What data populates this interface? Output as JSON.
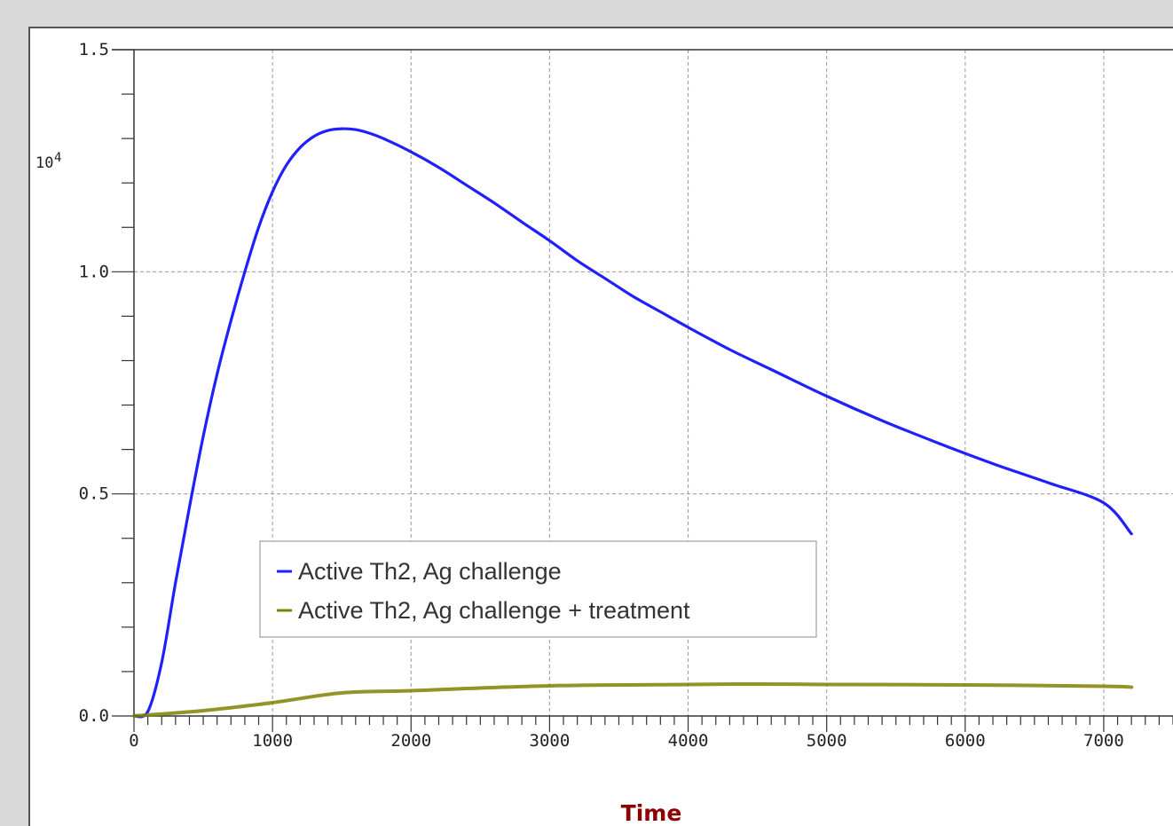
{
  "chart_data": {
    "type": "line",
    "title": "",
    "xlabel": "Time",
    "ylabel": "",
    "y_multiplier_label": {
      "base": "10",
      "exponent": "4"
    },
    "xlim": [
      0,
      7500
    ],
    "ylim": [
      0,
      1.5
    ],
    "x_ticks": [
      0,
      1000,
      2000,
      3000,
      4000,
      5000,
      6000,
      7000
    ],
    "x_tick_labels": [
      "0",
      "1000",
      "2000",
      "3000",
      "4000",
      "5000",
      "6000",
      "7000"
    ],
    "y_ticks": [
      0,
      0.5,
      1.0,
      1.5
    ],
    "y_tick_labels": [
      "0.0",
      "0.5",
      "1.0",
      "1.5"
    ],
    "grid": true,
    "legend_position": "lower-left",
    "series": [
      {
        "name": "Active Th2, Ag challenge",
        "color": "#1f1fff",
        "x": [
          0,
          100,
          200,
          300,
          400,
          500,
          600,
          700,
          800,
          900,
          1000,
          1100,
          1200,
          1300,
          1400,
          1500,
          1600,
          1700,
          1800,
          2000,
          2200,
          2400,
          2600,
          2800,
          3000,
          3200,
          3400,
          3600,
          3800,
          4000,
          4300,
          4600,
          5000,
          5400,
          5800,
          6200,
          6600,
          7000,
          7200
        ],
        "values": [
          0,
          0.01,
          0.12,
          0.3,
          0.47,
          0.63,
          0.77,
          0.89,
          1.0,
          1.1,
          1.18,
          1.24,
          1.28,
          1.305,
          1.318,
          1.322,
          1.32,
          1.312,
          1.3,
          1.27,
          1.235,
          1.195,
          1.155,
          1.112,
          1.07,
          1.025,
          0.985,
          0.945,
          0.91,
          0.875,
          0.825,
          0.78,
          0.72,
          0.665,
          0.615,
          0.568,
          0.525,
          0.48,
          0.41
        ]
      },
      {
        "name": "Active Th2, Ag challenge + treatment",
        "color": "#808000",
        "x": [
          0,
          500,
          1000,
          1500,
          2000,
          3000,
          4000,
          4500,
          5000,
          6000,
          7000,
          7200
        ],
        "values": [
          0,
          0.012,
          0.03,
          0.052,
          0.057,
          0.068,
          0.071,
          0.072,
          0.071,
          0.07,
          0.067,
          0.065
        ]
      }
    ]
  }
}
